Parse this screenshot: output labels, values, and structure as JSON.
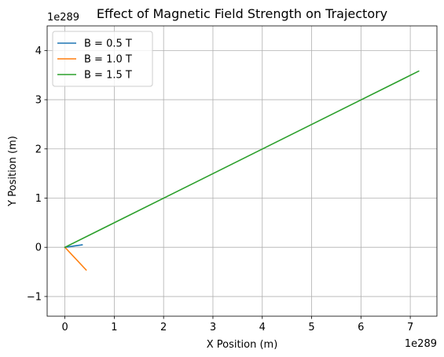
{
  "chart_data": {
    "type": "line",
    "title": "Effect of Magnetic Field Strength on Trajectory",
    "xlabel": "X Position (m)",
    "ylabel": "Y Position (m)",
    "x_offset_label": "1e289",
    "y_offset_label": "1e289",
    "xlim": [
      -0.36,
      7.54
    ],
    "ylim": [
      -1.4,
      4.5
    ],
    "xticks": [
      0,
      1,
      2,
      3,
      4,
      5,
      6,
      7
    ],
    "xtick_labels": [
      "0",
      "1",
      "2",
      "3",
      "4",
      "5",
      "6",
      "7"
    ],
    "yticks": [
      -1,
      0,
      1,
      2,
      3,
      4
    ],
    "ytick_labels": [
      "−1",
      "0",
      "1",
      "2",
      "3",
      "4"
    ],
    "grid": true,
    "legend_position": "top-left",
    "series": [
      {
        "name": "B = 0.5 T",
        "color": "#1f77b4",
        "x": [
          0,
          0.35
        ],
        "y": [
          0,
          0.05
        ]
      },
      {
        "name": "B = 1.0 T",
        "color": "#ff7f0e",
        "x": [
          0,
          0.43
        ],
        "y": [
          0,
          -0.46
        ]
      },
      {
        "name": "B = 1.5 T",
        "color": "#2ca02c",
        "x": [
          0,
          7.17
        ],
        "y": [
          0,
          3.58
        ]
      }
    ]
  }
}
